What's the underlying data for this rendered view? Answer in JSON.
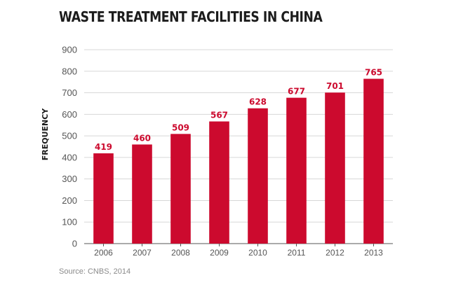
{
  "title": "WASTE TREATMENT FACILITIES IN CHINA",
  "source": "Source: CNBS, 2014",
  "colors": {
    "bar": "#cc0a2e",
    "grid": "#d7d7d7",
    "axis": "#555555"
  },
  "chart_data": {
    "type": "bar",
    "title": "WASTE TREATMENT FACILITIES IN CHINA",
    "xlabel": "",
    "ylabel": "FREQUENCY",
    "categories": [
      "2006",
      "2007",
      "2008",
      "2009",
      "2010",
      "2011",
      "2012",
      "2013"
    ],
    "values": [
      419,
      460,
      509,
      567,
      628,
      677,
      701,
      765
    ],
    "ylim": [
      0,
      900
    ],
    "yticks": [
      0,
      100,
      200,
      300,
      400,
      500,
      600,
      700,
      800,
      900
    ],
    "grid": true,
    "data_labels": true
  }
}
